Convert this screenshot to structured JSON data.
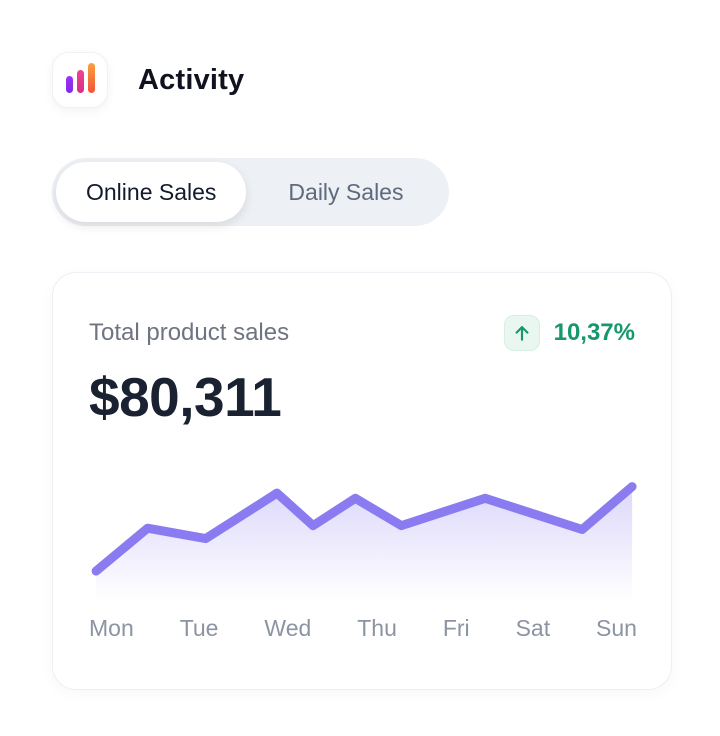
{
  "header": {
    "title": "Activity",
    "icon": "bar-chart-icon"
  },
  "tabs": {
    "active_index": 0,
    "items": [
      {
        "label": "Online Sales"
      },
      {
        "label": "Daily Sales"
      }
    ]
  },
  "card": {
    "label": "Total product sales",
    "value": "$80,311",
    "trend": {
      "direction": "up",
      "value": "10,37%",
      "icon": "arrow-up-icon"
    }
  },
  "colors": {
    "accent_purple": "#8a7bf0",
    "trend_green": "#16976d",
    "trend_badge_bg": "#eaf7f1",
    "icon_bar_purple": "#8f2bf0",
    "icon_bar_pink": "#e73b8d",
    "icon_bar_orange": "#f8893c",
    "tabs_bg": "#edf0f4",
    "text_dark": "#1a2231",
    "text_gray": "#6f7482"
  },
  "chart_data": {
    "type": "area",
    "title": "Total product sales by weekday",
    "categories": [
      "Mon",
      "Tue",
      "Wed",
      "Thu",
      "Fri",
      "Sat",
      "Sun"
    ],
    "points": [
      [
        1.3,
        23
      ],
      [
        10.7,
        56
      ],
      [
        21.3,
        48
      ],
      [
        34.3,
        83
      ],
      [
        40.9,
        58
      ],
      [
        48.6,
        79
      ],
      [
        57.0,
        58
      ],
      [
        72.3,
        79
      ],
      [
        90.0,
        55
      ],
      [
        99.1,
        88
      ]
    ],
    "points_format": "[x_percent_of_width, value_percent_of_height]",
    "line_color": "#8a7bf0",
    "line_width": 9,
    "fill_gradient_top": "rgba(138,123,240,0.30)",
    "fill_gradient_bottom": "rgba(138,123,240,0)",
    "grid": false,
    "legend": false,
    "xlabel": "",
    "ylabel": ""
  }
}
